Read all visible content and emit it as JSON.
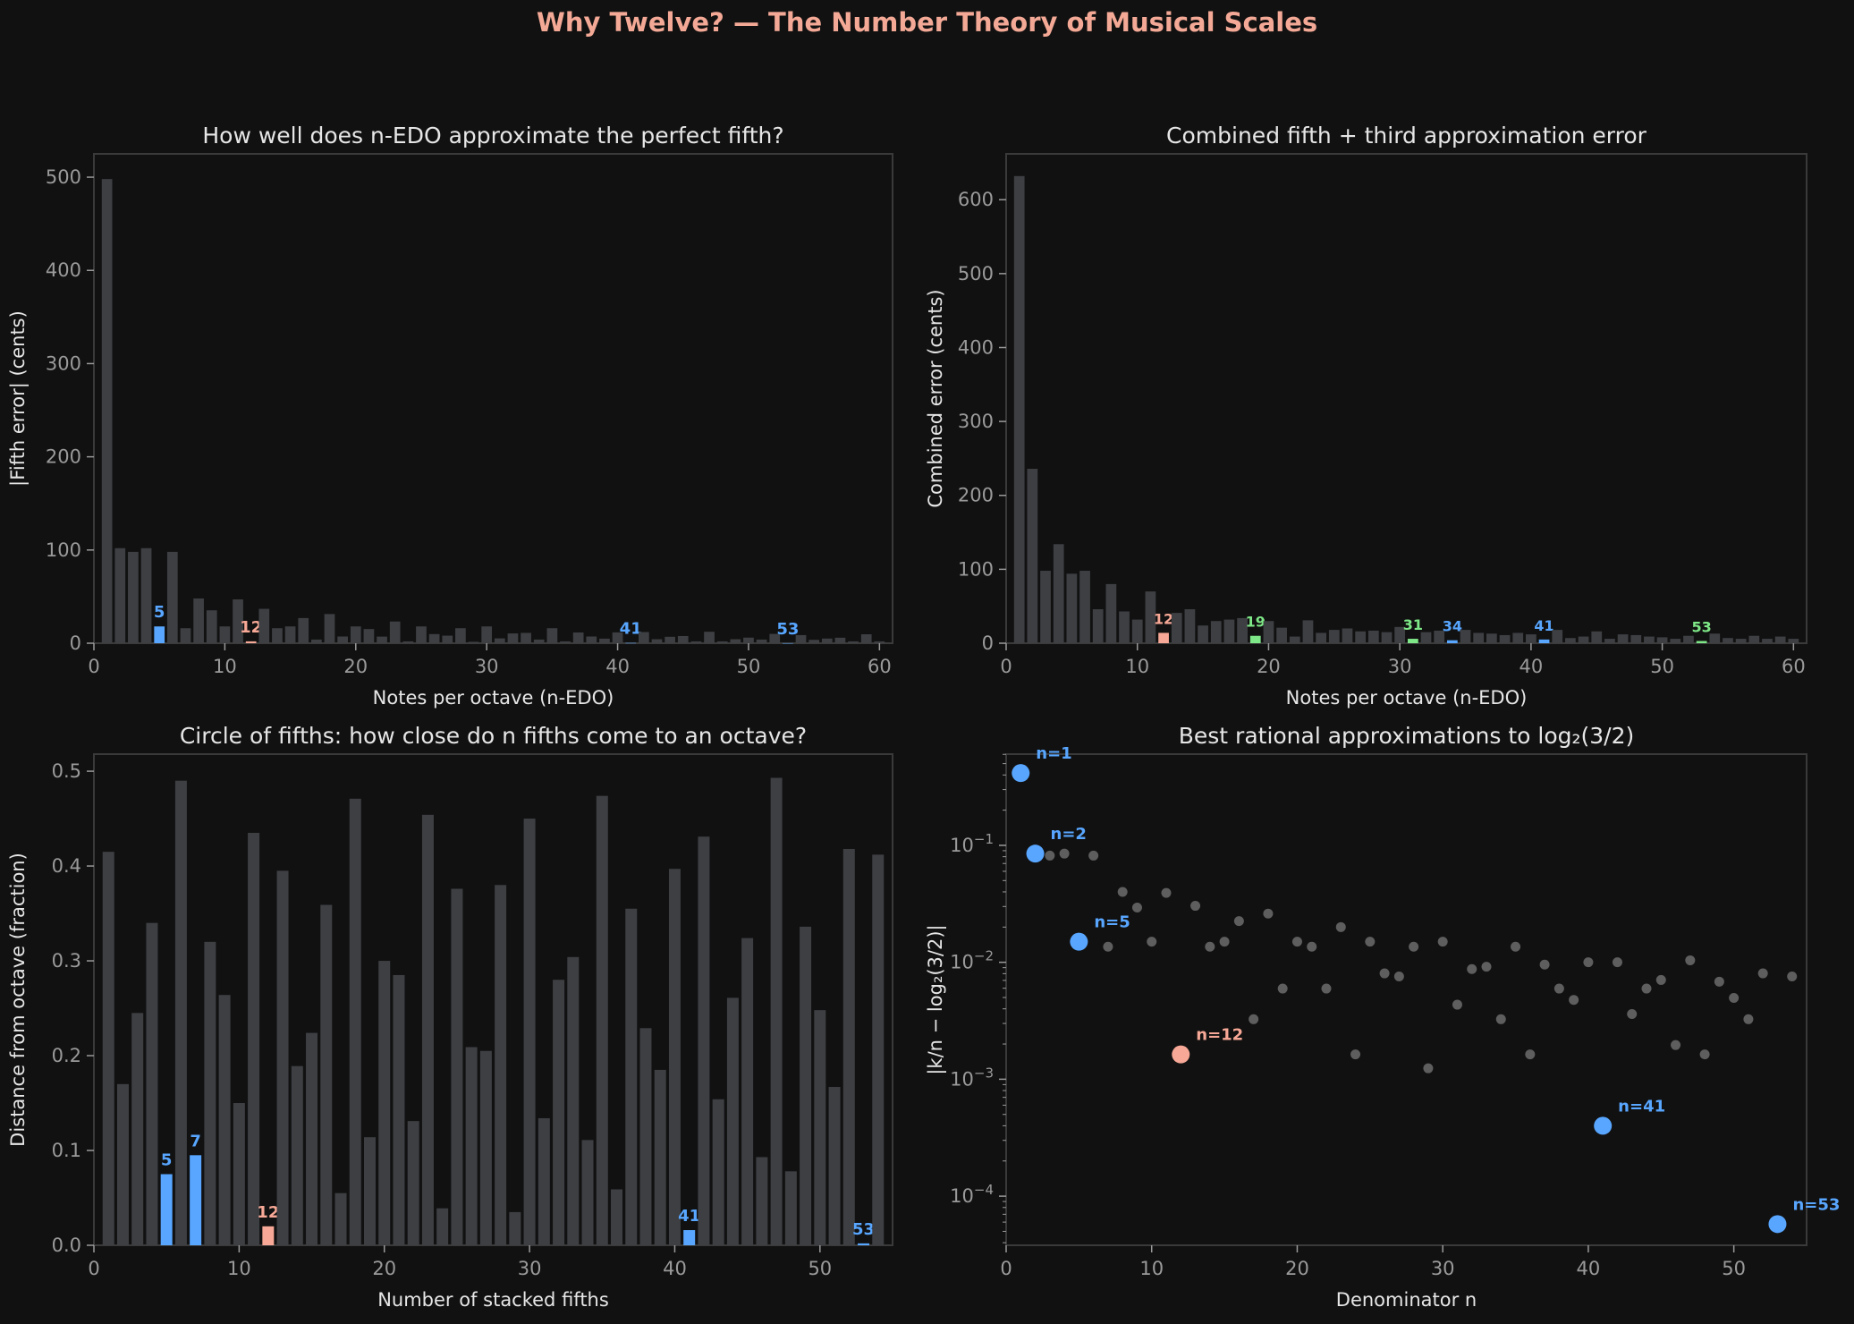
{
  "figure": {
    "suptitle": "Why Twelve? — The Number Theory of Musical Scales",
    "colors": {
      "background": "#111111",
      "bar": "#3d3f43",
      "blue": "#58a6ff",
      "salmon": "#f7a896",
      "green": "#7ee787",
      "text": "#e6e6e6",
      "tick": "#9a9a9a",
      "spine": "#3a3a3a"
    }
  },
  "chart_data": [
    {
      "id": "fifth",
      "type": "bar",
      "title": "How well does n-EDO approximate the perfect fifth?",
      "xlabel": "Notes per octave (n-EDO)",
      "ylabel": "|Fifth error| (cents)",
      "xlim": [
        0,
        61
      ],
      "ylim": [
        0,
        525
      ],
      "xticks": [
        0,
        10,
        20,
        30,
        40,
        50,
        60
      ],
      "yticks": [
        0,
        100,
        200,
        300,
        400,
        500
      ],
      "x": [
        1,
        2,
        3,
        4,
        5,
        6,
        7,
        8,
        9,
        10,
        11,
        12,
        13,
        14,
        15,
        16,
        17,
        18,
        19,
        20,
        21,
        22,
        23,
        24,
        25,
        26,
        27,
        28,
        29,
        30,
        31,
        32,
        33,
        34,
        35,
        36,
        37,
        38,
        39,
        40,
        41,
        42,
        43,
        44,
        45,
        46,
        47,
        48,
        49,
        50,
        51,
        52,
        53,
        54,
        55,
        56,
        57,
        58,
        59,
        60
      ],
      "values": [
        498.0,
        102.0,
        98.0,
        102.0,
        18.0,
        98.0,
        16.1,
        48.0,
        35.3,
        18.0,
        47.0,
        2.0,
        36.9,
        16.1,
        18.0,
        27.0,
        3.9,
        31.3,
        7.2,
        18.0,
        15.2,
        7.1,
        23.3,
        2.0,
        18.0,
        9.8,
        8.1,
        16.1,
        1.5,
        18.0,
        5.2,
        10.5,
        11.1,
        3.9,
        16.1,
        2.0,
        11.5,
        7.2,
        4.9,
        11.6,
        0.3,
        12.0,
        4.3,
        6.9,
        7.7,
        2.0,
        12.3,
        2.0,
        4.3,
        6.0,
        3.9,
        10.0,
        0.07,
        8.7,
        3.6,
        5.0,
        5.9,
        2.0,
        9.6,
        2.0
      ],
      "highlights": [
        {
          "n": 5,
          "label": "5",
          "color": "blue"
        },
        {
          "n": 12,
          "label": "12",
          "color": "salmon"
        },
        {
          "n": 41,
          "label": "41",
          "color": "blue"
        },
        {
          "n": 53,
          "label": "53",
          "color": "blue"
        }
      ]
    },
    {
      "id": "combined",
      "type": "bar",
      "title": "Combined fifth + third approximation error",
      "xlabel": "Notes per octave (n-EDO)",
      "ylabel": "Combined error (cents)",
      "xlim": [
        0,
        61
      ],
      "ylim": [
        0,
        662
      ],
      "xticks": [
        0,
        10,
        20,
        30,
        40,
        50,
        60
      ],
      "yticks": [
        0,
        100,
        200,
        300,
        400,
        500,
        600
      ],
      "x": [
        1,
        2,
        3,
        4,
        5,
        6,
        7,
        8,
        9,
        10,
        11,
        12,
        13,
        14,
        15,
        16,
        17,
        18,
        19,
        20,
        21,
        22,
        23,
        24,
        25,
        26,
        27,
        28,
        29,
        30,
        31,
        32,
        33,
        34,
        35,
        36,
        37,
        38,
        39,
        40,
        41,
        42,
        43,
        44,
        45,
        46,
        47,
        48,
        49,
        50,
        51,
        52,
        53,
        54,
        55,
        56,
        57,
        58,
        59,
        60
      ],
      "values": [
        632.0,
        236.0,
        98.0,
        134.0,
        94.0,
        98.0,
        46.0,
        80.0,
        43.0,
        32.0,
        70.0,
        14.0,
        41.0,
        46.0,
        24.0,
        30.0,
        32.0,
        34.0,
        10.0,
        30.0,
        21.0,
        9.0,
        31.0,
        14.0,
        18.0,
        20.0,
        16.0,
        17.0,
        15.0,
        22.0,
        6.0,
        15.0,
        17.0,
        4.0,
        18.0,
        14.0,
        13.0,
        11.0,
        14.0,
        12.0,
        5.0,
        18.0,
        7.0,
        9.0,
        16.0,
        6.0,
        12.0,
        11.0,
        9.0,
        8.0,
        6.0,
        10.0,
        3.0,
        13.0,
        7.0,
        6.0,
        10.0,
        6.0,
        9.0,
        6.0
      ],
      "highlights": [
        {
          "n": 12,
          "label": "12",
          "color": "salmon"
        },
        {
          "n": 19,
          "label": "19",
          "color": "green"
        },
        {
          "n": 31,
          "label": "31",
          "color": "green"
        },
        {
          "n": 34,
          "label": "34",
          "color": "blue"
        },
        {
          "n": 41,
          "label": "41",
          "color": "blue"
        },
        {
          "n": 53,
          "label": "53",
          "color": "green"
        }
      ]
    },
    {
      "id": "circle",
      "type": "bar",
      "title": "Circle of fifths: how close do n fifths come to an octave?",
      "xlabel": "Number of stacked fifths",
      "ylabel": "Distance from octave (fraction)",
      "xlim": [
        0,
        55
      ],
      "ylim": [
        0,
        0.518
      ],
      "xticks": [
        0,
        10,
        20,
        30,
        40,
        50
      ],
      "yticks": [
        0.0,
        0.1,
        0.2,
        0.3,
        0.4,
        0.5
      ],
      "x": [
        1,
        2,
        3,
        4,
        5,
        6,
        7,
        8,
        9,
        10,
        11,
        12,
        13,
        14,
        15,
        16,
        17,
        18,
        19,
        20,
        21,
        22,
        23,
        24,
        25,
        26,
        27,
        28,
        29,
        30,
        31,
        32,
        33,
        34,
        35,
        36,
        37,
        38,
        39,
        40,
        41,
        42,
        43,
        44,
        45,
        46,
        47,
        48,
        49,
        50,
        51,
        52,
        53,
        54
      ],
      "values": [
        0.415,
        0.17,
        0.245,
        0.34,
        0.075,
        0.49,
        0.095,
        0.32,
        0.264,
        0.15,
        0.435,
        0.02,
        0.395,
        0.189,
        0.224,
        0.359,
        0.055,
        0.471,
        0.114,
        0.3,
        0.285,
        0.131,
        0.454,
        0.039,
        0.376,
        0.209,
        0.205,
        0.38,
        0.035,
        0.45,
        0.134,
        0.28,
        0.304,
        0.111,
        0.474,
        0.059,
        0.355,
        0.229,
        0.185,
        0.397,
        0.016,
        0.431,
        0.154,
        0.261,
        0.324,
        0.093,
        0.493,
        0.078,
        0.336,
        0.248,
        0.167,
        0.418,
        0.002,
        0.412
      ],
      "highlights": [
        {
          "n": 5,
          "label": "5",
          "color": "blue"
        },
        {
          "n": 7,
          "label": "7",
          "color": "blue"
        },
        {
          "n": 12,
          "label": "12",
          "color": "salmon"
        },
        {
          "n": 41,
          "label": "41",
          "color": "blue"
        },
        {
          "n": 53,
          "label": "53",
          "color": "blue"
        }
      ]
    },
    {
      "id": "rational",
      "type": "scatter",
      "title": "Best rational approximations to log₂(3/2)",
      "xlabel": "Denominator n",
      "ylabel": "|k/n − log₂(3/2)|",
      "xscale": "linear",
      "yscale": "log",
      "xlim": [
        0,
        55
      ],
      "ylim_log10": [
        -4.42,
        -0.22
      ],
      "xticks": [
        0,
        10,
        20,
        30,
        40,
        50
      ],
      "yticks": [
        {
          "exp": -1,
          "label": "10",
          "sup": "−1"
        },
        {
          "exp": -2,
          "label": "10",
          "sup": "−2"
        },
        {
          "exp": -3,
          "label": "10",
          "sup": "−3"
        },
        {
          "exp": -4,
          "label": "10",
          "sup": "−4"
        }
      ],
      "points": [
        [
          3,
          0.0817
        ],
        [
          4,
          0.085
        ],
        [
          6,
          0.0817
        ],
        [
          7,
          0.0136
        ],
        [
          8,
          0.04
        ],
        [
          9,
          0.0294
        ],
        [
          10,
          0.015
        ],
        [
          11,
          0.0392
        ],
        [
          13,
          0.0304
        ],
        [
          14,
          0.0136
        ],
        [
          15,
          0.015
        ],
        [
          16,
          0.0225
        ],
        [
          17,
          0.00326
        ],
        [
          18,
          0.0261
        ],
        [
          19,
          0.00596
        ],
        [
          20,
          0.015
        ],
        [
          21,
          0.0136
        ],
        [
          22,
          0.00596
        ],
        [
          23,
          0.02
        ],
        [
          24,
          0.00163
        ],
        [
          25,
          0.015
        ],
        [
          26,
          0.00804
        ],
        [
          27,
          0.00757
        ],
        [
          28,
          0.0136
        ],
        [
          29,
          0.00124
        ],
        [
          30,
          0.015
        ],
        [
          31,
          0.00434
        ],
        [
          32,
          0.00875
        ],
        [
          33,
          0.00917
        ],
        [
          34,
          0.00326
        ],
        [
          35,
          0.0136
        ],
        [
          36,
          0.00163
        ],
        [
          37,
          0.00956
        ],
        [
          38,
          0.00596
        ],
        [
          39,
          0.00477
        ],
        [
          40,
          0.01
        ],
        [
          42,
          0.01
        ],
        [
          43,
          0.00361
        ],
        [
          44,
          0.00596
        ],
        [
          45,
          0.00706
        ],
        [
          46,
          0.00196
        ],
        [
          47,
          0.0104
        ],
        [
          48,
          0.00163
        ],
        [
          49,
          0.00683
        ],
        [
          50,
          0.00496
        ],
        [
          51,
          0.00326
        ],
        [
          52,
          0.00804
        ],
        [
          54,
          0.00757
        ]
      ],
      "highlights": [
        {
          "n": 1,
          "y": 0.415,
          "label": "n=1",
          "color": "blue"
        },
        {
          "n": 2,
          "y": 0.085,
          "label": "n=2",
          "color": "blue"
        },
        {
          "n": 5,
          "y": 0.015,
          "label": "n=5",
          "color": "blue"
        },
        {
          "n": 12,
          "y": 0.00163,
          "label": "n=12",
          "color": "salmon"
        },
        {
          "n": 41,
          "y": 0.0004,
          "label": "n=41",
          "color": "blue"
        },
        {
          "n": 53,
          "y": 5.77e-05,
          "label": "n=53",
          "color": "blue"
        }
      ]
    }
  ]
}
